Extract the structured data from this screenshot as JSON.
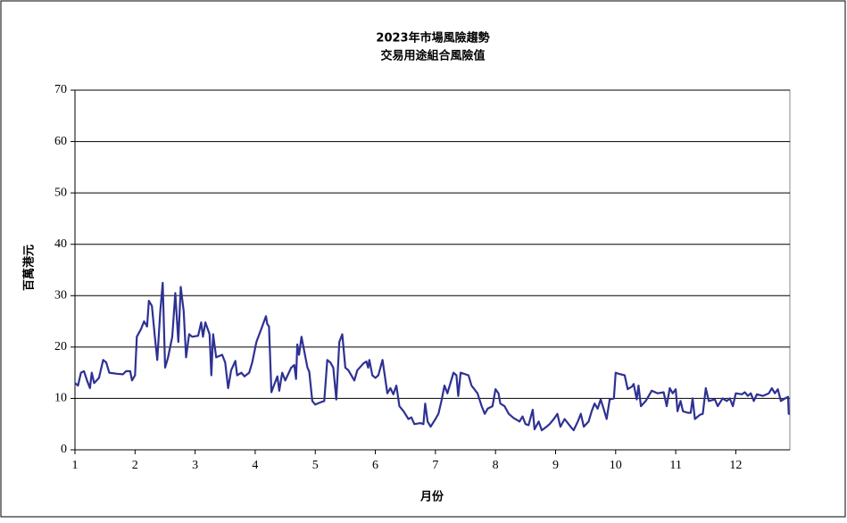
{
  "chart_data": {
    "type": "line",
    "title": "2023年市場風險趨勢",
    "subtitle": "交易用途組合風險值",
    "x_label": "月份",
    "y_label": "百萬港元",
    "xlim": [
      1,
      12.9
    ],
    "xticks": [
      1,
      2,
      3,
      4,
      5,
      6,
      7,
      8,
      9,
      10,
      11,
      12
    ],
    "ylim": [
      0,
      70
    ],
    "yticks": [
      0,
      10,
      20,
      30,
      40,
      50,
      60,
      70
    ],
    "grid": true,
    "series": [
      {
        "color": "#2e3192",
        "x": [
          1.0,
          1.05,
          1.1,
          1.15,
          1.2,
          1.25,
          1.28,
          1.32,
          1.4,
          1.47,
          1.52,
          1.57,
          1.7,
          1.8,
          1.85,
          1.92,
          1.95,
          2.0,
          2.03,
          2.1,
          2.15,
          2.2,
          2.23,
          2.28,
          2.33,
          2.37,
          2.42,
          2.46,
          2.5,
          2.55,
          2.62,
          2.67,
          2.72,
          2.76,
          2.81,
          2.85,
          2.9,
          2.95,
          3.05,
          3.1,
          3.13,
          3.17,
          3.24,
          3.27,
          3.3,
          3.35,
          3.45,
          3.5,
          3.55,
          3.6,
          3.67,
          3.7,
          3.77,
          3.82,
          3.9,
          3.95,
          4.02,
          4.1,
          4.18,
          4.2,
          4.23,
          4.27,
          4.32,
          4.37,
          4.4,
          4.45,
          4.5,
          4.6,
          4.65,
          4.68,
          4.7,
          4.73,
          4.77,
          4.82,
          4.87,
          4.9,
          4.95,
          5.0,
          5.08,
          5.15,
          5.2,
          5.25,
          5.3,
          5.35,
          5.4,
          5.45,
          5.5,
          5.55,
          5.65,
          5.7,
          5.8,
          5.85,
          5.88,
          5.9,
          5.95,
          6.0,
          6.05,
          6.12,
          6.2,
          6.25,
          6.3,
          6.35,
          6.4,
          6.47,
          6.55,
          6.6,
          6.65,
          6.75,
          6.8,
          6.83,
          6.87,
          6.92,
          7.0,
          7.05,
          7.1,
          7.15,
          7.2,
          7.3,
          7.35,
          7.38,
          7.42,
          7.55,
          7.6,
          7.7,
          7.77,
          7.82,
          7.87,
          7.95,
          8.0,
          8.05,
          8.08,
          8.15,
          8.22,
          8.3,
          8.4,
          8.45,
          8.5,
          8.55,
          8.62,
          8.65,
          8.72,
          8.77,
          8.85,
          8.9,
          8.97,
          9.03,
          9.08,
          9.15,
          9.25,
          9.3,
          9.37,
          9.42,
          9.47,
          9.55,
          9.6,
          9.65,
          9.7,
          9.75,
          9.8,
          9.85,
          9.9,
          9.97,
          10.0,
          10.05,
          10.15,
          10.2,
          10.27,
          10.3,
          10.35,
          10.38,
          10.42,
          10.5,
          10.6,
          10.7,
          10.8,
          10.85,
          10.9,
          10.95,
          11.0,
          11.03,
          11.08,
          11.12,
          11.2,
          11.25,
          11.28,
          11.32,
          11.4,
          11.45,
          11.5,
          11.55,
          11.65,
          11.7,
          11.78,
          11.85,
          11.9,
          11.95,
          12.0,
          12.1,
          12.15,
          12.2,
          12.25,
          12.3,
          12.35,
          12.45,
          12.55,
          12.6,
          12.65,
          12.7,
          12.75,
          12.82,
          12.87,
          12.88,
          12.9
        ],
        "values": [
          13,
          12.5,
          15,
          15.3,
          13.5,
          12,
          15,
          13,
          14,
          17.5,
          17,
          15,
          14.8,
          14.7,
          15.3,
          15.3,
          13.5,
          14.5,
          22,
          23.5,
          25,
          24,
          29,
          28,
          22,
          17.5,
          27,
          32.5,
          16,
          18,
          22,
          30.5,
          21,
          31.7,
          27,
          18,
          22.5,
          22,
          22.2,
          24.8,
          22,
          24.8,
          22.5,
          14.5,
          22.5,
          18,
          18.5,
          17,
          12,
          15.5,
          17.3,
          14.5,
          15,
          14.3,
          15,
          17,
          21,
          23.5,
          26,
          24.5,
          24,
          11.2,
          12.8,
          14.3,
          11.5,
          15,
          13.5,
          16,
          16.5,
          13.8,
          20.5,
          18.5,
          22,
          19,
          16,
          15.2,
          9.5,
          8.8,
          9.2,
          9.5,
          17.5,
          17,
          16,
          9.8,
          21,
          22.5,
          16,
          15.5,
          13.5,
          15.5,
          16.8,
          17.2,
          16,
          17.5,
          14.5,
          14,
          14.5,
          17.5,
          11,
          12,
          10.8,
          12.5,
          8.5,
          7.5,
          6,
          6.3,
          5,
          5.2,
          5,
          9,
          5.5,
          4.5,
          6,
          7,
          9.5,
          12.5,
          11,
          15,
          14.5,
          10.5,
          15,
          14.5,
          12.5,
          11,
          8.5,
          7,
          8,
          8.5,
          11.8,
          11,
          9,
          8.5,
          7,
          6.2,
          5.5,
          6.5,
          5,
          4.8,
          7.8,
          4,
          5.5,
          3.8,
          4.5,
          5,
          6,
          7,
          4.5,
          6,
          4.5,
          3.8,
          5.5,
          7,
          4.5,
          5.5,
          7.5,
          9,
          8,
          9.8,
          8,
          6,
          9.8,
          10,
          15,
          14.8,
          14.5,
          11.8,
          12.3,
          12.8,
          9.8,
          12.5,
          8.5,
          9.5,
          11.5,
          11,
          11.2,
          8.5,
          12,
          11,
          11.8,
          7.5,
          9.5,
          7.5,
          7.2,
          7.2,
          10,
          6,
          6.8,
          7,
          12,
          9.5,
          9.8,
          8.5,
          10,
          9.5,
          10,
          8.5,
          11,
          10.8,
          11.2,
          10.5,
          11,
          9.5,
          10.8,
          10.5,
          11,
          12,
          11,
          11.8,
          9.5,
          10,
          10.3,
          7,
          7
        ]
      }
    ]
  }
}
